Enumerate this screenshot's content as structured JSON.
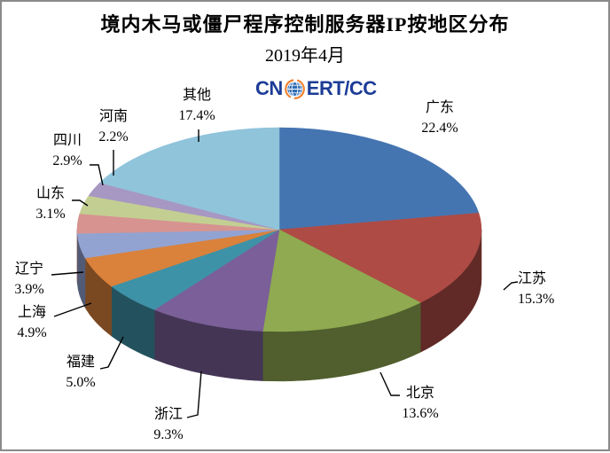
{
  "header": {
    "title": "境内木马或僵尸程序控制服务器IP按地区分布",
    "subtitle": "2019年4月",
    "logo": {
      "prefix": "CN",
      "suffix": "ERT/CC",
      "text_color": "#1C3C97",
      "globe_blue": "#2E6DB4",
      "globe_orange": "#EE7F2D"
    }
  },
  "chart_data": {
    "type": "pie",
    "style": "3d",
    "title": "境内木马或僵尸程序控制服务器IP按地区分布",
    "subtitle": "2019年4月",
    "unit": "percent",
    "start_angle_deg": 0,
    "direction": "clockwise",
    "legend": "none (labels with leader lines around pie)",
    "categories": [
      "广东",
      "江苏",
      "北京",
      "浙江",
      "福建",
      "上海",
      "辽宁",
      "山东",
      "四川",
      "河南",
      "其他"
    ],
    "values": [
      22.4,
      15.3,
      13.6,
      9.3,
      5.0,
      4.9,
      3.9,
      3.1,
      2.9,
      2.2,
      17.4
    ],
    "slices": [
      {
        "id": "guangdong",
        "name": "广东",
        "value": 22.4,
        "pct_label": "22.4%",
        "color": "#4575B1"
      },
      {
        "id": "jiangsu",
        "name": "江苏",
        "value": 15.3,
        "pct_label": "15.3%",
        "color": "#AE4B45"
      },
      {
        "id": "beijing",
        "name": "北京",
        "value": 13.6,
        "pct_label": "13.6%",
        "color": "#8FAA50"
      },
      {
        "id": "zhejiang",
        "name": "浙江",
        "value": 9.3,
        "pct_label": "9.3%",
        "color": "#7A5F98"
      },
      {
        "id": "fujian",
        "name": "福建",
        "value": 5.0,
        "pct_label": "5.0%",
        "color": "#3E92A7"
      },
      {
        "id": "shanghai",
        "name": "上海",
        "value": 4.9,
        "pct_label": "4.9%",
        "color": "#DA813B"
      },
      {
        "id": "liaoning",
        "name": "辽宁",
        "value": 3.9,
        "pct_label": "3.9%",
        "color": "#92A3D2"
      },
      {
        "id": "shandong",
        "name": "山东",
        "value": 3.1,
        "pct_label": "3.1%",
        "color": "#D69390"
      },
      {
        "id": "sichuan",
        "name": "四川",
        "value": 2.9,
        "pct_label": "2.9%",
        "color": "#C3CF92"
      },
      {
        "id": "henan",
        "name": "河南",
        "value": 2.2,
        "pct_label": "2.2%",
        "color": "#A797C3"
      },
      {
        "id": "others",
        "name": "其他",
        "value": 17.4,
        "pct_label": "17.4%",
        "color": "#8FC4DB"
      }
    ]
  }
}
